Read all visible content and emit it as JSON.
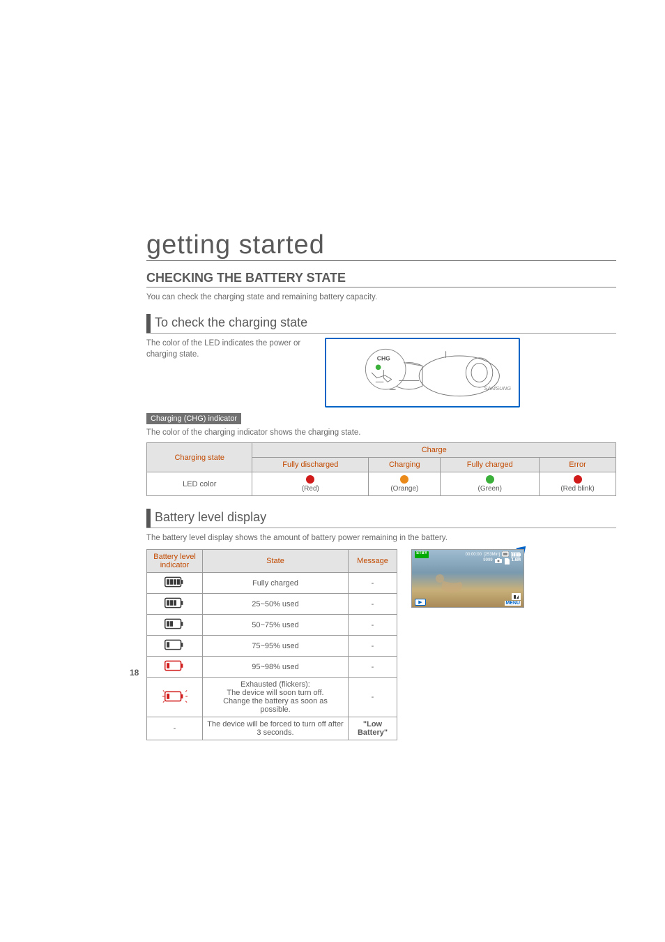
{
  "page_number": "18",
  "h1": "getting started",
  "h2": "CHECKING THE BATTERY STATE",
  "intro": "You can check the charging state and remaining battery capacity.",
  "check_charging": {
    "heading": "To check the charging state",
    "body": "The color of the LED indicates the power or charging state.",
    "sub_label": "Charging (CHG) indicator",
    "sub_body": "The color of the charging indicator shows the charging state.",
    "chg_label": "CHG"
  },
  "charging_table": {
    "row_header": "Charging state",
    "group_header": "Charge",
    "columns": [
      "Fully discharged",
      "Charging",
      "Fully charged",
      "Error"
    ],
    "row_label": "LED color",
    "cells": [
      {
        "color": "#d11a1a",
        "label": "(Red)"
      },
      {
        "color": "#ea8a1a",
        "label": "(Orange)"
      },
      {
        "color": "#3bb03b",
        "label": "(Green)"
      },
      {
        "color": "#d11a1a",
        "label": "(Red blink)"
      }
    ]
  },
  "battery_level": {
    "heading": "Battery level display",
    "body": "The battery level display shows the amount of battery power remaining in the battery.",
    "columns": [
      "Battery level indicator",
      "State",
      "Message"
    ],
    "rows": [
      {
        "bars": 4,
        "body": "#3a3a3a",
        "outline": "#3a3a3a",
        "flicker": false,
        "state": "Fully charged",
        "message": "-"
      },
      {
        "bars": 3,
        "body": "#3a3a3a",
        "outline": "#3a3a3a",
        "flicker": false,
        "state": "25~50% used",
        "message": "-"
      },
      {
        "bars": 2,
        "body": "#3a3a3a",
        "outline": "#3a3a3a",
        "flicker": false,
        "state": "50~75% used",
        "message": "-"
      },
      {
        "bars": 1,
        "body": "#3a3a3a",
        "outline": "#3a3a3a",
        "flicker": false,
        "state": "75~95% used",
        "message": "-"
      },
      {
        "bars": 1,
        "body": "#d11a1a",
        "outline": "#d11a1a",
        "flicker": false,
        "state": "95~98% used",
        "message": "-"
      },
      {
        "bars": 1,
        "body": "#d11a1a",
        "outline": "#d11a1a",
        "flicker": true,
        "state": "Exhausted (flickers):\nThe device will soon turn off.\nChange the battery as soon as possible.",
        "message": "-"
      },
      {
        "bars": -1,
        "body": "",
        "outline": "",
        "flicker": false,
        "state": "The device will be forced to turn off after 3 seconds.",
        "message": "\"Low Battery\""
      }
    ]
  },
  "lcd": {
    "stby": "STBY",
    "time": "00:00:00",
    "remain": "[253Min]",
    "memory": "9999",
    "mem_icon": "📷",
    "zoom": "1.6M",
    "menu": "MENU"
  },
  "colors": {
    "rule": "#7a7a7a",
    "accent_blue": "#0063c6",
    "header_text": "#c24a00",
    "led_green": "#3bb03b"
  }
}
